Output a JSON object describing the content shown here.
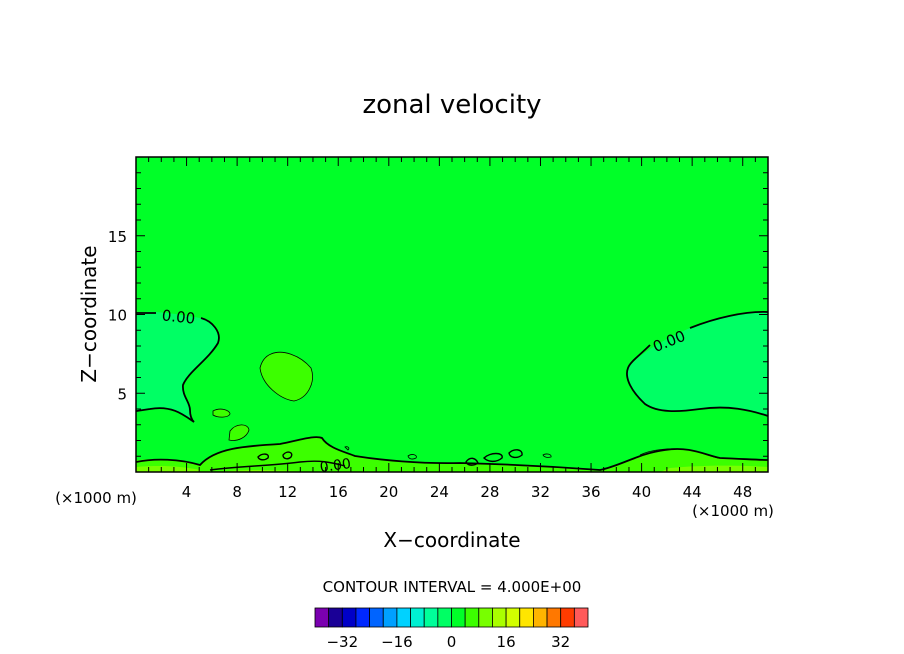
{
  "chart_data": {
    "type": "heatmap",
    "title": "zonal velocity",
    "xlabel": "X−coordinate",
    "ylabel": "Z−coordinate",
    "x_unit": "(×1000 m)",
    "y_unit": "(×1000 m)",
    "xlim": [
      0,
      50
    ],
    "ylim": [
      0,
      20
    ],
    "x_ticks": [
      4,
      8,
      12,
      16,
      20,
      24,
      28,
      32,
      36,
      40,
      44,
      48
    ],
    "x_tick_labels": [
      "4",
      "8",
      "12",
      "16",
      "20",
      "24",
      "28",
      "32",
      "36",
      "40",
      "44",
      "48"
    ],
    "y_ticks": [
      5,
      10,
      15
    ],
    "y_tick_labels": [
      "5",
      "10",
      "15"
    ],
    "contour_labels": [
      "0.00",
      "0.00",
      "0.00"
    ],
    "contour_interval_text": "CONTOUR INTERVAL = 4.000E+00",
    "field_note": "Field is near zero everywhere; negative lobes (slightly below 0) at left x 0–6 for z 3–10 and right x 39–50 for z 3.5–10; small positive patches near x 10–13, z 5–7.5 and along the bottom boundary.",
    "colorbar": {
      "levels": [
        -40,
        -36,
        -32,
        -28,
        -24,
        -20,
        -16,
        -12,
        -8,
        -4,
        0,
        4,
        8,
        12,
        16,
        20,
        24,
        28,
        32,
        36,
        40
      ],
      "tick_values": [
        -32,
        -16,
        0,
        16,
        32
      ],
      "tick_labels": [
        "−32",
        "−16",
        "0",
        "16",
        "32"
      ],
      "colors": [
        "#7a00b0",
        "#1a0096",
        "#0000c8",
        "#0028ff",
        "#0064ff",
        "#00a0ff",
        "#00d2ff",
        "#00f0d2",
        "#00ff9a",
        "#00ff64",
        "#00ff28",
        "#3cff00",
        "#78ff00",
        "#aaff00",
        "#d2ff00",
        "#ffe600",
        "#ffb400",
        "#ff7800",
        "#ff3c00",
        "#ff5a5a",
        "#ffa0a0"
      ]
    },
    "colors": {
      "background_field": "#00ff28",
      "negative_region": "#00ff64",
      "positive_region": "#3cff00",
      "bottom_band": "#78ff00"
    }
  }
}
